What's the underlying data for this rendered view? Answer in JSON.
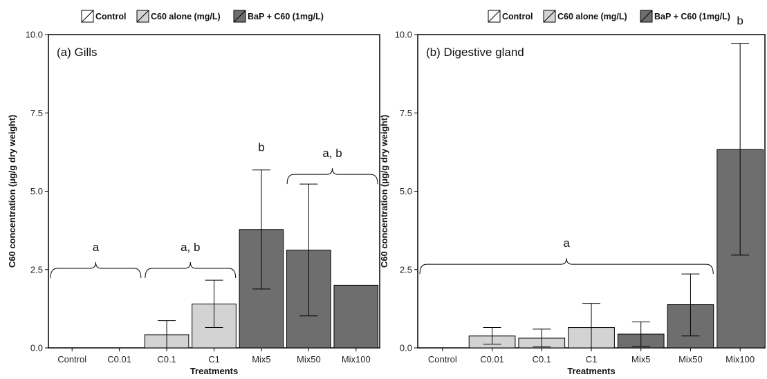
{
  "chart_data": [
    {
      "type": "bar",
      "panel_label": "(a) Gills",
      "xlabel": "Treatments",
      "ylabel": "C60 concentration (µg/g dry weight)",
      "ylim": [
        0,
        10
      ],
      "yticks": [
        "0.0",
        "2.5",
        "5.0",
        "7.5",
        "10.0"
      ],
      "categories": [
        "Control",
        "C0.01",
        "C0.1",
        "C1",
        "Mix5",
        "Mix50",
        "Mix100"
      ],
      "groups": [
        "Control",
        "Control",
        "C60 alone",
        "C60 alone",
        "BaP + C60",
        "BaP + C60",
        "BaP + C60"
      ],
      "values": [
        0,
        0,
        0.42,
        1.4,
        3.78,
        3.12,
        2.0
      ],
      "error_low": [
        null,
        null,
        0.0,
        0.65,
        1.88,
        1.02,
        null
      ],
      "error_high": [
        null,
        null,
        0.87,
        2.16,
        5.68,
        5.23,
        null
      ],
      "significance": [
        {
          "label": "a",
          "from": 0,
          "to": 1
        },
        {
          "label": "a, b",
          "from": 2,
          "to": 3
        },
        {
          "label": "b",
          "at": 4
        },
        {
          "label": "a, b",
          "from": 5,
          "to": 6
        }
      ],
      "legend": [
        "Control",
        "C60 alone (mg/L)",
        "BaP + C60 (1mg/L)"
      ],
      "legend_position": "top",
      "grid": false
    },
    {
      "type": "bar",
      "panel_label": "(b) Digestive gland",
      "xlabel": "Treatments",
      "ylabel": "C60 concentration (µg/g dry weight)",
      "ylim": [
        0,
        10
      ],
      "yticks": [
        "0.0",
        "2.5",
        "5.0",
        "7.5",
        "10.0"
      ],
      "categories": [
        "Control",
        "C0.01",
        "C0.1",
        "C1",
        "Mix5",
        "Mix50",
        "Mix100"
      ],
      "groups": [
        "Control",
        "C60 alone",
        "C60 alone",
        "C60 alone",
        "BaP + C60",
        "BaP + C60",
        "BaP + C60"
      ],
      "values": [
        0,
        0.38,
        0.31,
        0.65,
        0.44,
        1.38,
        6.33
      ],
      "error_low": [
        null,
        0.12,
        0.03,
        0.0,
        0.05,
        0.38,
        2.96
      ],
      "error_high": [
        null,
        0.65,
        0.6,
        1.42,
        0.83,
        2.36,
        9.72
      ],
      "significance": [
        {
          "label": "a",
          "from": 0,
          "to": 5
        },
        {
          "label": "b",
          "at": 6
        }
      ],
      "legend": [
        "Control",
        "C60 alone (mg/L)",
        "BaP + C60 (1mg/L)"
      ],
      "legend_position": "top",
      "grid": false
    }
  ],
  "colors": {
    "Control": "#ffffff",
    "C60 alone": "#d3d3d3",
    "BaP + C60": "#6e6e6e",
    "frame": "#000000"
  }
}
